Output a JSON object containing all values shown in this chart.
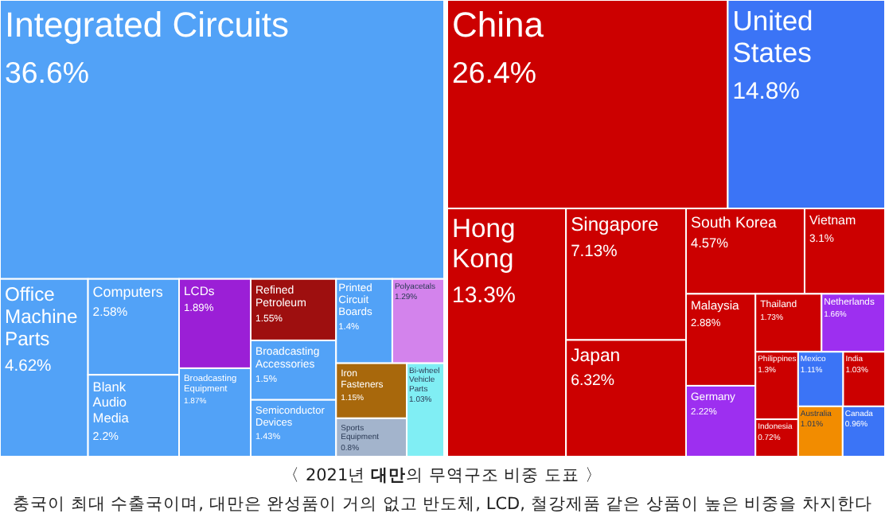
{
  "chart_data": [
    {
      "type": "other",
      "categories": [
        "Integrated Circuits",
        "Office Machine Parts",
        "Computers",
        "Blank Audio Media",
        "LCDs",
        "Broadcasting Equipment",
        "Refined Petroleum",
        "Broadcasting Accessories",
        "Semiconductor Devices",
        "Printed Circuit Boards",
        "Polyacetals",
        "Iron Fasteners",
        "Sports Equipment",
        "Bi-wheel Vehicle Parts"
      ],
      "values": [
        36.6,
        4.62,
        2.58,
        2.2,
        1.89,
        1.87,
        1.55,
        1.5,
        1.43,
        1.4,
        1.29,
        1.15,
        0.8,
        1.03
      ],
      "value_labels": [
        "36.6%",
        "4.62%",
        "2.58%",
        "2.2%",
        "1.89%",
        "1.87%",
        "1.55%",
        "1.5%",
        "1.43%",
        "1.4%",
        "1.29%",
        "1.15%",
        "0.8%",
        "1.03%"
      ],
      "colors": [
        "#52a2f7",
        "#52a2f7",
        "#52a2f7",
        "#52a2f7",
        "#9b1fd6",
        "#52a2f7",
        "#9e0f0f",
        "#52a2f7",
        "#52a2f7",
        "#52a2f7",
        "#d383ec",
        "#a8680c",
        "#a3b4cc",
        "#80eef4"
      ]
    },
    {
      "type": "other",
      "categories": [
        "China",
        "United States",
        "Hong Kong",
        "Singapore",
        "Japan",
        "South Korea",
        "Vietnam",
        "Malaysia",
        "Germany",
        "Thailand",
        "Netherlands",
        "Philippines",
        "Indonesia",
        "Mexico",
        "India",
        "Australia",
        "Canada"
      ],
      "values": [
        26.4,
        14.8,
        13.3,
        7.13,
        6.32,
        4.57,
        3.1,
        2.88,
        2.22,
        1.73,
        1.66,
        1.3,
        0.72,
        1.11,
        1.03,
        1.01,
        0.96
      ],
      "value_labels": [
        "26.4%",
        "14.8%",
        "13.3%",
        "7.13%",
        "6.32%",
        "4.57%",
        "3.1%",
        "2.88%",
        "2.22%",
        "1.73%",
        "1.66%",
        "1.3%",
        "0.72%",
        "1.11%",
        "1.03%",
        "1.01%",
        "0.96%"
      ],
      "colors": [
        "#cc0000",
        "#3b74f6",
        "#cc0000",
        "#cc0000",
        "#cc0000",
        "#cc0000",
        "#cc0000",
        "#cc0000",
        "#9d2ff0",
        "#cc0000",
        "#9d2ff0",
        "#cc0000",
        "#cc0000",
        "#3b74f6",
        "#cc0000",
        "#f28c00",
        "#3b74f6"
      ]
    },
    {
      "type": "other",
      "title": "〈 2021년 **대만**의 무역구조 비중 도표 〉",
      "subtitle": "충국이 최대 수출국이며, 대만은 완성품이 거의 없고 반도체, LCD, 철강제품 같은 상품이 높은 비중을 차지한다"
    }
  ]
}
